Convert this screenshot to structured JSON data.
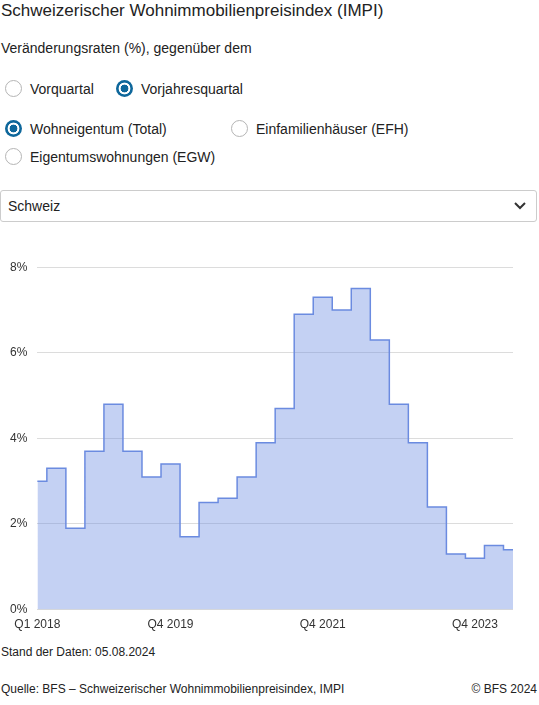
{
  "header": {
    "title": "Schweizerischer Wohnimmobilienpreisindex (IMPI)",
    "subtitle": "Veränderungsraten (%), gegenüber dem"
  },
  "controls": {
    "comparison": {
      "options": [
        "Vorquartal",
        "Vorjahresquartal"
      ],
      "selected": "Vorjahresquartal"
    },
    "segment": {
      "options": [
        "Wohneigentum (Total)",
        "Einfamilienhäuser (EFH)",
        "Eigentumswohnungen (EGW)"
      ],
      "selected": "Wohneigentum (Total)"
    },
    "region": "Schweiz"
  },
  "chart_data": {
    "type": "line",
    "line_style": "step",
    "fill": true,
    "categories": [
      "Q1 2018",
      null,
      null,
      null,
      null,
      null,
      null,
      "Q4 2019",
      null,
      null,
      null,
      null,
      null,
      null,
      null,
      "Q4 2021",
      null,
      null,
      null,
      null,
      null,
      null,
      null,
      "Q4 2023",
      null,
      null
    ],
    "values": [
      3.0,
      3.3,
      1.9,
      3.7,
      4.8,
      3.7,
      3.1,
      3.4,
      1.7,
      2.5,
      2.6,
      3.1,
      3.9,
      4.7,
      6.9,
      7.3,
      7.0,
      7.5,
      6.3,
      4.8,
      3.9,
      2.4,
      1.3,
      1.2,
      1.5,
      1.4
    ],
    "color": "#6b8be0",
    "ylim": [
      0,
      8
    ],
    "yticks": [
      {
        "value": 0,
        "label": "0%"
      },
      {
        "value": 2,
        "label": "2%"
      },
      {
        "value": 4,
        "label": "4%"
      },
      {
        "value": 6,
        "label": "6%"
      },
      {
        "value": 8,
        "label": "8%"
      }
    ],
    "grid": true
  },
  "footer": {
    "stand": "Stand der Daten: 05.08.2024",
    "source": "Quelle: BFS – Schweizerischer Wohnimmobilienpreisindex, IMPI",
    "copyright": "© BFS 2024"
  }
}
